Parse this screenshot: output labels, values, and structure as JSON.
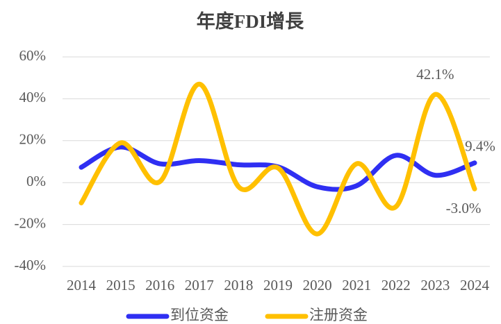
{
  "chart_data": {
    "type": "line",
    "title": "年度FDI增長",
    "categories": [
      "2014",
      "2015",
      "2016",
      "2017",
      "2018",
      "2019",
      "2020",
      "2021",
      "2022",
      "2023",
      "2024"
    ],
    "series": [
      {
        "name": "到位资金",
        "color": "#2f2ff2",
        "values": [
          7.3,
          17,
          9,
          10.5,
          8.5,
          7.5,
          -2,
          -1.5,
          13,
          3.5,
          9.4
        ],
        "value_labels": [
          null,
          null,
          null,
          null,
          null,
          null,
          null,
          null,
          null,
          null,
          "9.4%"
        ]
      },
      {
        "name": "注册资金",
        "color": "#ffc000",
        "values": [
          -9.7,
          19,
          0.5,
          47,
          -2,
          7,
          -24.5,
          9,
          -11.5,
          42.1,
          -3.0
        ],
        "value_labels": [
          null,
          null,
          null,
          null,
          null,
          null,
          null,
          null,
          null,
          "42.1%",
          "-3.0%"
        ]
      }
    ],
    "ylim": [
      -40,
      60
    ],
    "yticks": [
      {
        "value": -40,
        "label": "-40%"
      },
      {
        "value": -20,
        "label": "-20%"
      },
      {
        "value": 0,
        "label": "0%"
      },
      {
        "value": 20,
        "label": "20%"
      },
      {
        "value": 40,
        "label": "40%"
      },
      {
        "value": 60,
        "label": "60%"
      }
    ],
    "grid": true,
    "legend": "bottom"
  }
}
